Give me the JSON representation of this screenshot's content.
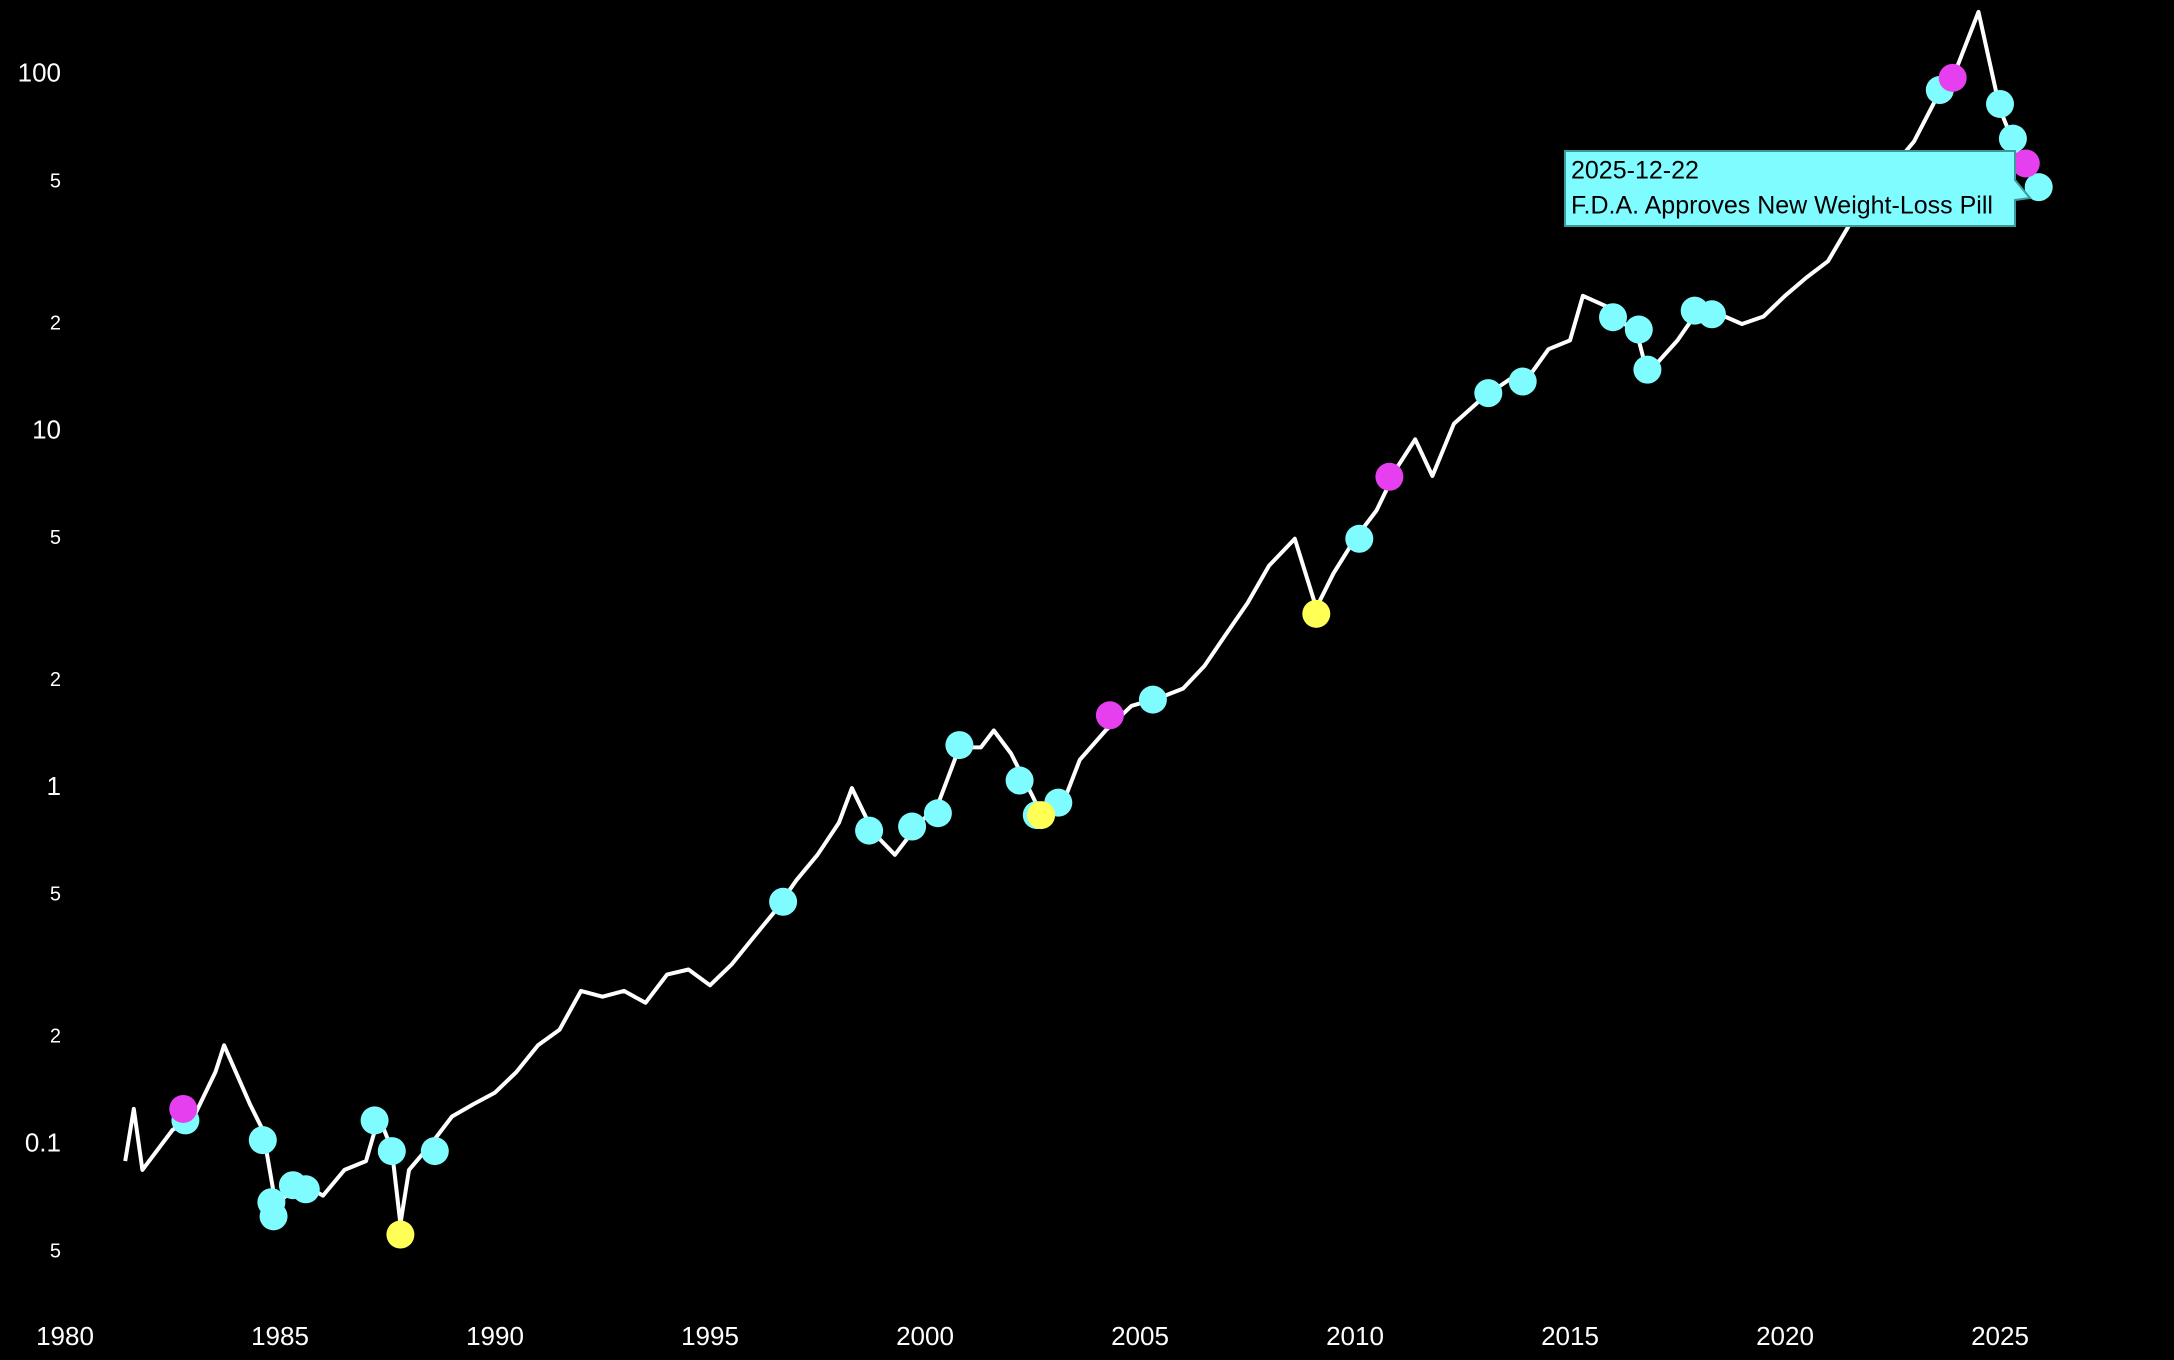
{
  "chart_data": {
    "type": "line",
    "log_y": true,
    "grid": false,
    "background": "#000000",
    "xlim": [
      1980,
      2029
    ],
    "xticks": [
      1980,
      1985,
      1990,
      1995,
      2000,
      2005,
      2010,
      2015,
      2020,
      2025
    ],
    "ylim": [
      0.036,
      162
    ],
    "yticks": [
      {
        "value": 0.05,
        "label": "5"
      },
      0.1,
      {
        "value": 0.2,
        "label": "2"
      },
      {
        "value": 0.5,
        "label": "5"
      },
      1,
      {
        "value": 2,
        "label": "2"
      },
      {
        "value": 5,
        "label": "5"
      },
      10,
      {
        "value": 20,
        "label": "2"
      },
      {
        "value": 50,
        "label": "5"
      },
      100
    ],
    "x": [
      1981.4,
      1981.6,
      1981.8,
      1982.5,
      1983,
      1983.5,
      1983.7,
      1984.3,
      1984.6,
      1984.9,
      1985.5,
      1986,
      1986.5,
      1987,
      1987.3,
      1987.6,
      1987.8,
      1988,
      1988.5,
      1989,
      1989.5,
      1990,
      1990.5,
      1991,
      1991.5,
      1992,
      1992.5,
      1993,
      1993.5,
      1994,
      1994.5,
      1995,
      1995.5,
      1996,
      1996.5,
      1997,
      1997.5,
      1998,
      1998.3,
      1998.8,
      1999.3,
      1999.8,
      2000.3,
      2000.8,
      2001.3,
      2001.6,
      2002,
      2002.5,
      2002.8,
      2003.2,
      2003.6,
      2004.2,
      2004.8,
      2005.5,
      2006,
      2006.5,
      2007,
      2007.5,
      2008,
      2008.6,
      2009.1,
      2009.5,
      2010,
      2010.5,
      2011,
      2011.4,
      2011.8,
      2012.3,
      2013,
      2013.6,
      2014,
      2014.5,
      2015,
      2015.3,
      2016,
      2016.6,
      2016.8,
      2017.5,
      2018,
      2018.6,
      2019,
      2019.5,
      2020,
      2020.5,
      2021,
      2021.5,
      2022,
      2022.5,
      2023,
      2023.5,
      2024,
      2024.5,
      2025,
      2025.3,
      2025.6,
      2025.9
    ],
    "series": [
      {
        "color": "#ffffff",
        "values": [
          0.09,
          0.126,
          0.085,
          0.11,
          0.12,
          0.16,
          0.19,
          0.13,
          0.11,
          0.068,
          0.078,
          0.072,
          0.085,
          0.09,
          0.12,
          0.097,
          0.06,
          0.085,
          0.1,
          0.12,
          0.13,
          0.14,
          0.16,
          0.19,
          0.21,
          0.27,
          0.26,
          0.27,
          0.25,
          0.3,
          0.31,
          0.28,
          0.32,
          0.38,
          0.45,
          0.55,
          0.65,
          0.8,
          1.0,
          0.75,
          0.65,
          0.78,
          0.9,
          1.3,
          1.3,
          1.45,
          1.25,
          0.95,
          0.8,
          0.9,
          1.2,
          1.45,
          1.7,
          1.8,
          1.9,
          2.2,
          2.7,
          3.3,
          4.2,
          5.0,
          3.2,
          4.0,
          5.0,
          6.0,
          8.0,
          9.5,
          7.5,
          10.5,
          12.5,
          14,
          14,
          17,
          18,
          24,
          22,
          18,
          14.5,
          18,
          22,
          21,
          20,
          21,
          24,
          27,
          30,
          38,
          45,
          55,
          65,
          85,
          105,
          150,
          80,
          65,
          55,
          48
        ]
      }
    ],
    "markers": [
      {
        "color": "#7ffcff",
        "x": [
          1982.8,
          1984.6,
          1984.8,
          1984.85,
          1985.3,
          1985.6,
          1987.2,
          1987.6,
          1988.6,
          1996.7,
          1998.7,
          1999.7,
          2000.3,
          2000.8,
          2002.2,
          2002.6,
          2003.1,
          2005.3,
          2010.1,
          2013.1,
          2013.9,
          2016.0,
          2016.6,
          2016.8,
          2017.9,
          2018.3,
          2023.6,
          2025.0,
          2025.3,
          2025.9
        ],
        "values": [
          0.117,
          0.103,
          0.069,
          0.063,
          0.077,
          0.075,
          0.117,
          0.096,
          0.096,
          0.48,
          0.76,
          0.78,
          0.85,
          1.32,
          1.05,
          0.84,
          0.91,
          1.77,
          5.0,
          12.8,
          13.8,
          20.9,
          19.3,
          14.9,
          21.8,
          21.3,
          90.6,
          82.8,
          66.2,
          48.4
        ]
      },
      {
        "color": "#e63ff0",
        "x": [
          1982.75,
          2004.3,
          2010.8,
          2023.9,
          2025.6
        ],
        "values": [
          0.126,
          1.6,
          7.46,
          98,
          56.4
        ]
      },
      {
        "color": "#ffff55",
        "x": [
          1987.8,
          2002.7,
          2009.1
        ],
        "values": [
          0.056,
          0.84,
          3.08
        ]
      }
    ],
    "annotation": {
      "date": "2025-12-22",
      "text": "F.D.A. Approves New Weight-Loss Pill"
    }
  }
}
